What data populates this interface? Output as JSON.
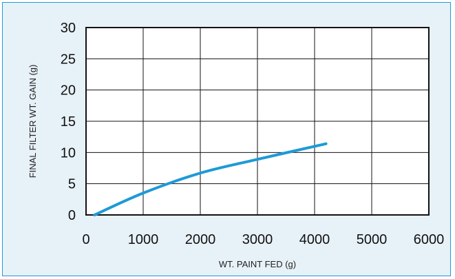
{
  "chart_data": {
    "type": "line",
    "title": "",
    "xlabel": "WT. PAINT FED (g)",
    "ylabel": "FINAL FILTER WT. GAIN (g)",
    "xlim": [
      0,
      6000
    ],
    "ylim": [
      0,
      30
    ],
    "xticks": [
      0,
      1000,
      2000,
      3000,
      4000,
      5000,
      6000
    ],
    "yticks": [
      0,
      5,
      10,
      15,
      20,
      25,
      30
    ],
    "xtick_labels": [
      "0",
      "1000",
      "2000",
      "3000",
      "4000",
      "5000",
      "6000"
    ],
    "ytick_labels": [
      "0",
      "5",
      "10",
      "15",
      "20",
      "25",
      "30"
    ],
    "grid": true,
    "series": [
      {
        "x": [
          150,
          1000,
          2000,
          3000,
          4200
        ],
        "y": [
          0,
          3.5,
          6.7,
          8.9,
          11.4
        ],
        "color": "#1e9ad6"
      }
    ]
  },
  "colors": {
    "background": "#e7f1f8",
    "border": "#1e9ad6",
    "line": "#1e9ad6",
    "plot_area": "#ffffff",
    "grid": "#111111"
  }
}
